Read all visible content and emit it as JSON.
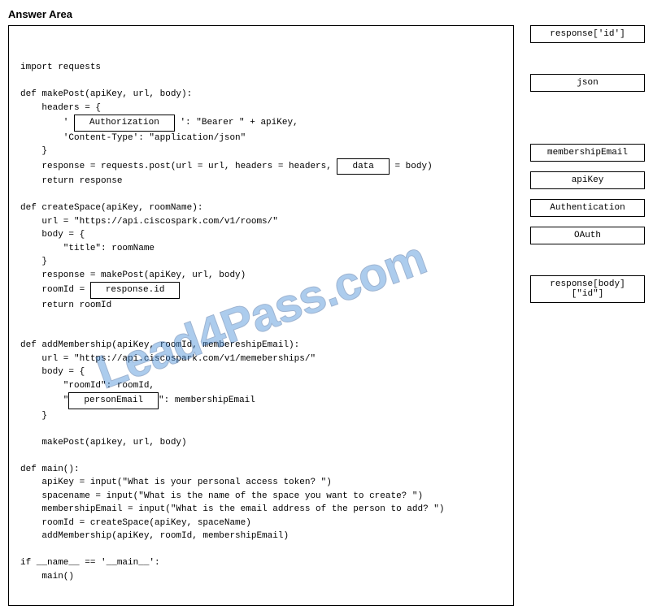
{
  "title": "Answer Area",
  "watermark": "Lead4Pass.com",
  "code": {
    "line01": "import requests",
    "line02": "def makePost(apiKey, url, body):",
    "line03": "    headers = {",
    "line04a": "        ' ",
    "box_auth": "Authorization",
    "line04b": " ': \"Bearer \" + apiKey,",
    "line05": "        'Content-Type': \"application/json\"",
    "line06": "    }",
    "line07a": "    response = requests.post(url = url, headers = headers, ",
    "box_data": "data",
    "line07b": " = body)",
    "line08": "    return response",
    "line09": "def createSpace(apiKey, roomName):",
    "line10": "    url = \"https://api.ciscospark.com/v1/rooms/\"",
    "line11": "    body = {",
    "line12": "        \"title\": roomName",
    "line13": "    }",
    "line14": "    response = makePost(apiKey, url, body)",
    "line15a": "    roomId = ",
    "box_respid": "response.id",
    "line16": "    return roomId",
    "line17": "def addMembership(apiKey, roomId, membereshipEmail):",
    "line18": "    url = \"https://api.ciscospark.com/v1/memeberships/\"",
    "line19": "    body = {",
    "line20": "        \"roomId\": roomId,",
    "line21a": "        \"",
    "box_person": "personEmail",
    "line21b": "\": membershipEmail",
    "line22": "    }",
    "line23": "    makePost(apikey, url, body)",
    "line24": "def main():",
    "line25": "    apiKey = input(\"What is your personal access token? \")",
    "line26": "    spacename = input(\"What is the name of the space you want to create? \")",
    "line27": "    membershipEmail = input(\"What is the email address of the person to add? \")",
    "line28": "    roomId = createSpace(apiKey, spaceName)",
    "line29": "    addMembership(apiKey, roomId, membershipEmail)",
    "line30": "if __name__ == '__main__':",
    "line31": "    main()"
  },
  "options": {
    "o1": "response['id']",
    "o2": "json",
    "o3": "membershipEmail",
    "o4": "apiKey",
    "o5": "Authentication",
    "o6": "OAuth",
    "o7": "response[body][\"id\"]"
  }
}
